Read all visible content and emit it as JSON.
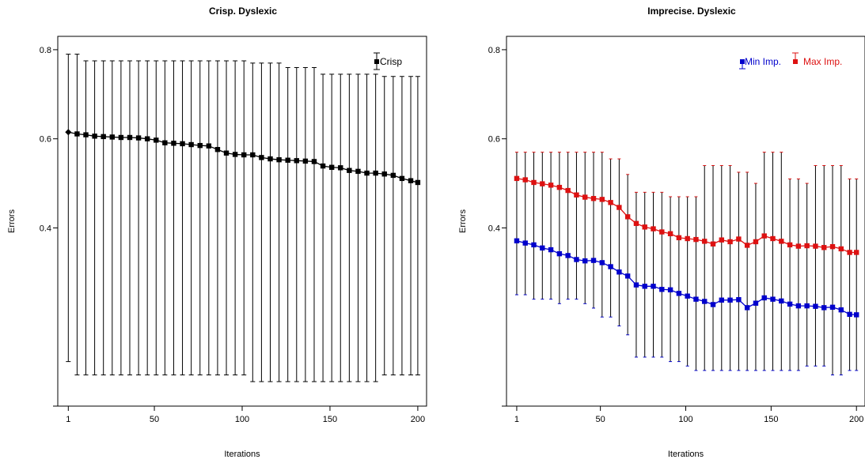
{
  "chart_data": [
    {
      "type": "line",
      "title": "Crisp. Dyslexic",
      "xlabel": "Iterations",
      "ylabel": "Errors",
      "xlim": [
        -5,
        205
      ],
      "ylim": [
        0.0,
        0.83
      ],
      "xticks": [
        "1",
        "50",
        "100",
        "150",
        "200"
      ],
      "yticks": [
        "0.8",
        "0.6",
        "0.4",
        ""
      ],
      "grid": false,
      "legend_position": "top-right",
      "series": [
        {
          "name": "Crisp",
          "color": "#000000",
          "marker": "square",
          "x": [
            1,
            6,
            11,
            16,
            21,
            26,
            31,
            36,
            41,
            46,
            51,
            56,
            61,
            66,
            71,
            76,
            81,
            86,
            91,
            96,
            101,
            106,
            111,
            116,
            121,
            126,
            131,
            136,
            141,
            146,
            151,
            156,
            161,
            166,
            171,
            176,
            181,
            186,
            191,
            196,
            200
          ],
          "y": [
            0.615,
            0.611,
            0.609,
            0.606,
            0.605,
            0.604,
            0.603,
            0.603,
            0.602,
            0.6,
            0.597,
            0.591,
            0.59,
            0.589,
            0.587,
            0.585,
            0.584,
            0.576,
            0.568,
            0.565,
            0.564,
            0.564,
            0.558,
            0.555,
            0.553,
            0.552,
            0.551,
            0.55,
            0.549,
            0.539,
            0.536,
            0.535,
            0.529,
            0.527,
            0.523,
            0.523,
            0.521,
            0.518,
            0.511,
            0.506,
            0.502
          ],
          "upper": [
            0.79,
            0.79,
            0.775,
            0.775,
            0.775,
            0.775,
            0.775,
            0.775,
            0.775,
            0.775,
            0.775,
            0.775,
            0.775,
            0.775,
            0.775,
            0.775,
            0.775,
            0.775,
            0.775,
            0.775,
            0.775,
            0.77,
            0.77,
            0.77,
            0.77,
            0.76,
            0.76,
            0.76,
            0.76,
            0.745,
            0.745,
            0.745,
            0.745,
            0.745,
            0.745,
            0.745,
            0.74,
            0.74,
            0.74,
            0.74,
            0.74
          ],
          "lower": [
            0.1,
            0.07,
            0.07,
            0.07,
            0.07,
            0.07,
            0.07,
            0.07,
            0.07,
            0.07,
            0.07,
            0.07,
            0.07,
            0.07,
            0.07,
            0.07,
            0.07,
            0.07,
            0.07,
            0.07,
            0.07,
            0.055,
            0.055,
            0.055,
            0.055,
            0.055,
            0.055,
            0.055,
            0.055,
            0.055,
            0.055,
            0.055,
            0.055,
            0.055,
            0.055,
            0.055,
            0.07,
            0.07,
            0.07,
            0.07,
            0.07
          ]
        }
      ]
    },
    {
      "type": "line",
      "title": "Imprecise. Dyslexic",
      "xlabel": "Iterations",
      "ylabel": "Errors",
      "xlim": [
        -5,
        205
      ],
      "ylim": [
        0.0,
        0.83
      ],
      "xticks": [
        "1",
        "50",
        "100",
        "150",
        "200"
      ],
      "yticks": [
        "0.8",
        "0.6",
        "0.4",
        ""
      ],
      "grid": false,
      "legend_position": "top-right",
      "series": [
        {
          "name": "Min Imp.",
          "color": "#0000cc",
          "marker": "square",
          "x": [
            1,
            6,
            11,
            16,
            21,
            26,
            31,
            36,
            41,
            46,
            51,
            56,
            61,
            66,
            71,
            76,
            81,
            86,
            91,
            96,
            101,
            106,
            111,
            116,
            121,
            126,
            131,
            136,
            141,
            146,
            151,
            156,
            161,
            166,
            171,
            176,
            181,
            186,
            191,
            196,
            200
          ],
          "y": [
            0.371,
            0.366,
            0.362,
            0.355,
            0.351,
            0.342,
            0.338,
            0.329,
            0.326,
            0.327,
            0.322,
            0.313,
            0.301,
            0.292,
            0.272,
            0.269,
            0.269,
            0.262,
            0.261,
            0.253,
            0.247,
            0.24,
            0.235,
            0.228,
            0.238,
            0.238,
            0.239,
            0.221,
            0.231,
            0.243,
            0.24,
            0.236,
            0.229,
            0.225,
            0.225,
            0.224,
            0.221,
            0.222,
            0.216,
            0.206,
            0.205
          ],
          "upper": [
            0.57,
            0.57,
            0.57,
            0.57,
            0.57,
            0.57,
            0.57,
            0.57,
            0.57,
            0.57,
            0.57,
            0.555,
            0.555,
            0.52,
            0.48,
            0.48,
            0.48,
            0.48,
            0.47,
            0.47,
            0.47,
            0.47,
            0.54,
            0.54,
            0.54,
            0.54,
            0.525,
            0.525,
            0.5,
            0.57,
            0.57,
            0.57,
            0.51,
            0.51,
            0.5,
            0.54,
            0.54,
            0.54,
            0.54,
            0.51,
            0.51
          ],
          "lower": [
            0.25,
            0.25,
            0.24,
            0.24,
            0.24,
            0.23,
            0.24,
            0.24,
            0.23,
            0.22,
            0.2,
            0.2,
            0.18,
            0.16,
            0.11,
            0.11,
            0.11,
            0.11,
            0.1,
            0.1,
            0.09,
            0.08,
            0.08,
            0.08,
            0.08,
            0.08,
            0.08,
            0.08,
            0.08,
            0.08,
            0.08,
            0.08,
            0.08,
            0.08,
            0.09,
            0.09,
            0.09,
            0.07,
            0.07,
            0.08,
            0.08
          ]
        },
        {
          "name": "Max Imp.",
          "color": "#dd1111",
          "marker": "square",
          "x": [
            1,
            6,
            11,
            16,
            21,
            26,
            31,
            36,
            41,
            46,
            51,
            56,
            61,
            66,
            71,
            76,
            81,
            86,
            91,
            96,
            101,
            106,
            111,
            116,
            121,
            126,
            131,
            136,
            141,
            146,
            151,
            156,
            161,
            166,
            171,
            176,
            181,
            186,
            191,
            196,
            200
          ],
          "y": [
            0.511,
            0.508,
            0.502,
            0.499,
            0.496,
            0.491,
            0.484,
            0.474,
            0.469,
            0.466,
            0.464,
            0.457,
            0.446,
            0.425,
            0.41,
            0.402,
            0.398,
            0.391,
            0.387,
            0.378,
            0.376,
            0.374,
            0.37,
            0.364,
            0.373,
            0.369,
            0.375,
            0.361,
            0.369,
            0.382,
            0.376,
            0.37,
            0.362,
            0.359,
            0.36,
            0.359,
            0.356,
            0.358,
            0.353,
            0.345,
            0.345
          ],
          "upper": [
            0.57,
            0.57,
            0.57,
            0.57,
            0.57,
            0.57,
            0.57,
            0.57,
            0.57,
            0.57,
            0.57,
            0.555,
            0.555,
            0.52,
            0.48,
            0.48,
            0.48,
            0.48,
            0.47,
            0.47,
            0.47,
            0.47,
            0.54,
            0.54,
            0.54,
            0.54,
            0.525,
            0.525,
            0.5,
            0.57,
            0.57,
            0.57,
            0.51,
            0.51,
            0.5,
            0.54,
            0.54,
            0.54,
            0.54,
            0.51,
            0.51
          ],
          "lower": [
            0.25,
            0.25,
            0.24,
            0.24,
            0.24,
            0.23,
            0.24,
            0.24,
            0.23,
            0.22,
            0.2,
            0.2,
            0.18,
            0.16,
            0.11,
            0.11,
            0.11,
            0.11,
            0.1,
            0.1,
            0.09,
            0.08,
            0.08,
            0.08,
            0.08,
            0.08,
            0.08,
            0.08,
            0.08,
            0.08,
            0.08,
            0.08,
            0.08,
            0.08,
            0.09,
            0.09,
            0.09,
            0.07,
            0.07,
            0.08,
            0.08
          ]
        }
      ]
    }
  ]
}
